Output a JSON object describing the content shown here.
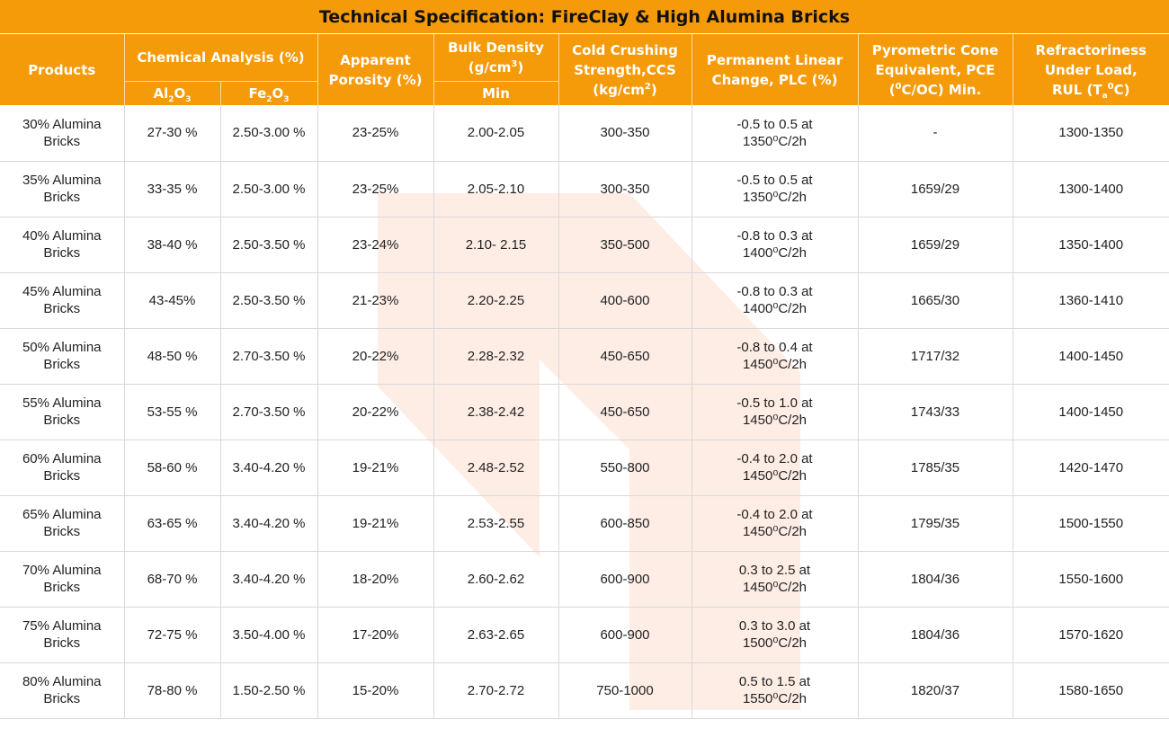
{
  "title": "Technical Specification: FireClay & High Alumina Bricks",
  "headers": {
    "products": "Products",
    "chemical_analysis": "Chemical Analysis (%)",
    "al2o3_a": "Al",
    "al2o3_sub1": "2",
    "al2o3_b": "O",
    "al2o3_sub2": "3",
    "fe2o3_a": "Fe",
    "fe2o3_sub1": "2",
    "fe2o3_b": "O",
    "fe2o3_sub2": "3",
    "apparent_porosity_1": "Apparent",
    "apparent_porosity_2": "Porosity (%)",
    "bulk_density_1": "Bulk Density",
    "bulk_density_2a": "(g/cm",
    "bulk_density_sup": "3",
    "bulk_density_2b": ")",
    "bulk_density_min": "Min",
    "ccs_1": "Cold Crushing",
    "ccs_2": "Strength,CCS",
    "ccs_3a": "(kg/cm",
    "ccs_sup": "2",
    "ccs_3b": ")",
    "plc_1": "Permanent Linear",
    "plc_2": "Change, PLC (%)",
    "pce_1": "Pyrometric Cone",
    "pce_2": "Equivalent, PCE",
    "pce_3a": "(",
    "pce_sup": "0",
    "pce_3b": "C/OC) Min.",
    "rul_1": "Refractoriness",
    "rul_2": "Under Load,",
    "rul_3a": "RUL (T",
    "rul_sub": "a",
    "rul_sup": "0",
    "rul_3b": "C)"
  },
  "rows": [
    {
      "product_1": "30% Alumina",
      "product_2": "Bricks",
      "al2o3": "27-30 %",
      "fe2o3": "2.50-3.00 %",
      "porosity": "23-25%",
      "density": "2.00-2.05",
      "ccs": "300-350",
      "plc_1": "-0.5 to 0.5 at",
      "plc_2": "1350⁰C/2h",
      "pce": "-",
      "rul": "1300-1350"
    },
    {
      "product_1": "35% Alumina",
      "product_2": "Bricks",
      "al2o3": "33-35 %",
      "fe2o3": "2.50-3.00 %",
      "porosity": "23-25%",
      "density": "2.05-2.10",
      "ccs": "300-350",
      "plc_1": "-0.5 to 0.5 at",
      "plc_2": "1350⁰C/2h",
      "pce": "1659/29",
      "rul": "1300-1400"
    },
    {
      "product_1": "40% Alumina",
      "product_2": "Bricks",
      "al2o3": "38-40 %",
      "fe2o3": "2.50-3.50 %",
      "porosity": "23-24%",
      "density": "2.10- 2.15",
      "ccs": "350-500",
      "plc_1": "-0.8 to 0.3 at",
      "plc_2": "1400⁰C/2h",
      "pce": "1659/29",
      "rul": "1350-1400"
    },
    {
      "product_1": "45% Alumina",
      "product_2": "Bricks",
      "al2o3": "43-45%",
      "fe2o3": "2.50-3.50 %",
      "porosity": "21-23%",
      "density": "2.20-2.25",
      "ccs": "400-600",
      "plc_1": "-0.8 to 0.3 at",
      "plc_2": "1400⁰C/2h",
      "pce": "1665/30",
      "rul": "1360-1410"
    },
    {
      "product_1": "50% Alumina",
      "product_2": "Bricks",
      "al2o3": "48-50 %",
      "fe2o3": "2.70-3.50 %",
      "porosity": "20-22%",
      "density": "2.28-2.32",
      "ccs": "450-650",
      "plc_1": "-0.8 to 0.4 at",
      "plc_2": "1450⁰C/2h",
      "pce": "1717/32",
      "rul": "1400-1450"
    },
    {
      "product_1": "55% Alumina",
      "product_2": "Bricks",
      "al2o3": "53-55 %",
      "fe2o3": "2.70-3.50 %",
      "porosity": "20-22%",
      "density": "2.38-2.42",
      "ccs": "450-650",
      "plc_1": "-0.5 to 1.0 at",
      "plc_2": "1450⁰C/2h",
      "pce": "1743/33",
      "rul": "1400-1450"
    },
    {
      "product_1": "60% Alumina",
      "product_2": "Bricks",
      "al2o3": "58-60 %",
      "fe2o3": "3.40-4.20 %",
      "porosity": "19-21%",
      "density": "2.48-2.52",
      "ccs": "550-800",
      "plc_1": "-0.4 to 2.0 at",
      "plc_2": "1450⁰C/2h",
      "pce": "1785/35",
      "rul": "1420-1470"
    },
    {
      "product_1": "65% Alumina",
      "product_2": "Bricks",
      "al2o3": "63-65 %",
      "fe2o3": "3.40-4.20 %",
      "porosity": "19-21%",
      "density": "2.53-2.55",
      "ccs": "600-850",
      "plc_1": "-0.4 to 2.0 at",
      "plc_2": "1450⁰C/2h",
      "pce": "1795/35",
      "rul": "1500-1550"
    },
    {
      "product_1": "70% Alumina",
      "product_2": "Bricks",
      "al2o3": "68-70 %",
      "fe2o3": "3.40-4.20 %",
      "porosity": "18-20%",
      "density": "2.60-2.62",
      "ccs": "600-900",
      "plc_1": "0.3 to 2.5 at",
      "plc_2": "1450⁰C/2h",
      "pce": "1804/36",
      "rul": "1550-1600"
    },
    {
      "product_1": "75% Alumina",
      "product_2": "Bricks",
      "al2o3": "72-75 %",
      "fe2o3": "3.50-4.00 %",
      "porosity": "17-20%",
      "density": "2.63-2.65",
      "ccs": "600-900",
      "plc_1": "0.3 to 3.0 at",
      "plc_2": "1500⁰C/2h",
      "pce": "1804/36",
      "rul": "1570-1620"
    },
    {
      "product_1": "80% Alumina",
      "product_2": "Bricks",
      "al2o3": "78-80 %",
      "fe2o3": "1.50-2.50 %",
      "porosity": "15-20%",
      "density": "2.70-2.72",
      "ccs": "750-1000",
      "plc_1": "0.5 to 1.5 at",
      "plc_2": "1550⁰C/2h",
      "pce": "1820/37",
      "rul": "1580-1650"
    }
  ],
  "colors": {
    "header_orange": "#f59a09",
    "watermark": "#fde7dc",
    "grid_line": "#d9d9d9"
  }
}
